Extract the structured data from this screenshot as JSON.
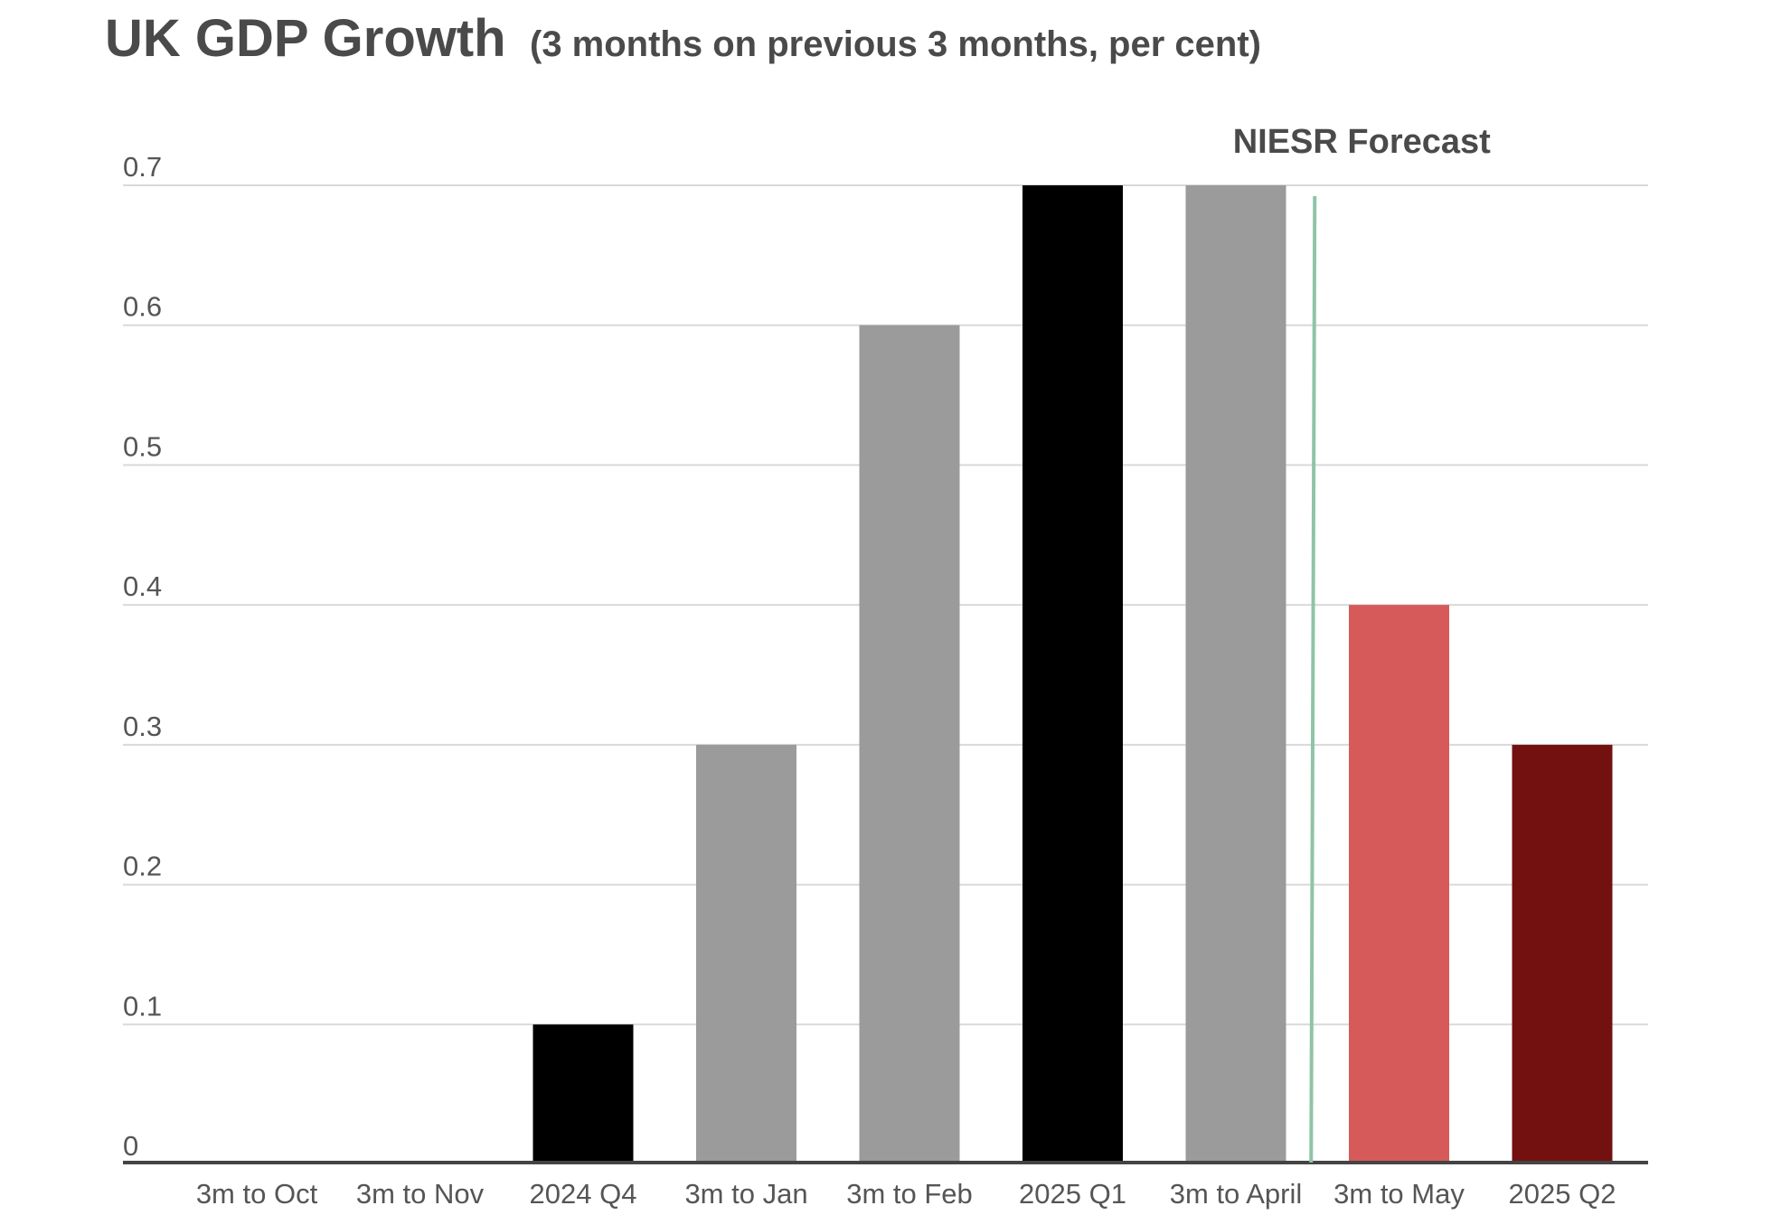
{
  "chart_data": {
    "type": "bar",
    "title": "UK GDP Growth",
    "subtitle": "(3 months on previous 3 months, per cent)",
    "xlabel": "",
    "ylabel": "",
    "categories": [
      "3m to Oct",
      "3m to Nov",
      "2024 Q4",
      "3m to Jan",
      "3m to Feb",
      "2025 Q1",
      "3m to April",
      "3m to May",
      "2025 Q2"
    ],
    "values": [
      0,
      0,
      0.1,
      0.3,
      0.6,
      0.7,
      0.7,
      0.4,
      0.3
    ],
    "bar_colors": [
      "#000000",
      "#000000",
      "#000000",
      "#9b9b9b",
      "#9b9b9b",
      "#000000",
      "#9b9b9b",
      "#d65a5a",
      "#731010"
    ],
    "ylim": [
      0,
      0.7
    ],
    "yticks": [
      0,
      0.1,
      0.2,
      0.3,
      0.4,
      0.5,
      0.6,
      0.7
    ],
    "ytick_labels": [
      "0",
      "0.1",
      "0.2",
      "0.3",
      "0.4",
      "0.5",
      "0.6",
      "0.7"
    ],
    "grid": true,
    "legend": "none",
    "annotation": {
      "text": "NIESR Forecast",
      "line_color": "#8fc4a6",
      "between_categories": [
        "3m to April",
        "3m to May"
      ]
    },
    "colors": {
      "title": "#4a4a4a",
      "tick_label": "#555555",
      "grid": "#d9d9d9",
      "axis": "#444444"
    }
  }
}
